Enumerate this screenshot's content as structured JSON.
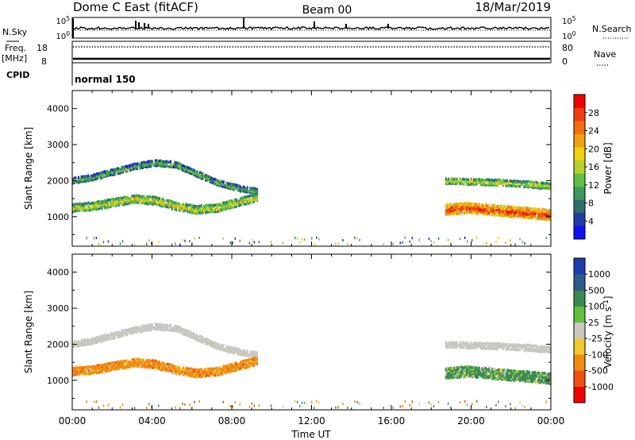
{
  "header": {
    "title": "Dome C East (fitACF)",
    "beam": "Beam 00",
    "date": "18/Mar/2019"
  },
  "params": {
    "nsky_label": "N.Sky",
    "nsky_ticks": [
      "10^5",
      "10^0"
    ],
    "nsearch_label": "N.Search",
    "nsearch_ticks": [
      "10^5",
      "10^0"
    ],
    "freq_label": "Freq.",
    "freq_unit": "[MHz]",
    "freq_ticks": [
      "18",
      "8"
    ],
    "nave_label": "Nave",
    "nave_ticks": [
      "80",
      "0"
    ],
    "cpid_label": "CPID",
    "cpid_value": "normal 150"
  },
  "colors": {
    "power": [
      "#1010f0",
      "#203ca0",
      "#2e6e6e",
      "#3c9a5a",
      "#60c040",
      "#b4d02a",
      "#f0d010",
      "#f0a010",
      "#f07010",
      "#f03c10",
      "#f00000"
    ],
    "velocity": [
      "#f00000",
      "#f05010",
      "#f08c10",
      "#f0c830",
      "#c8c8c0",
      "#60c040",
      "#3c8a50",
      "#2c5c8c",
      "#1c3cb0"
    ],
    "ground_scatter": "#c8c8c0"
  },
  "chart_data": [
    {
      "type": "heatmap",
      "name": "power",
      "xlabel": "",
      "ylabel": "Slant Range [km]",
      "xlim": [
        0,
        24
      ],
      "ylim": [
        180,
        4500
      ],
      "yticks": [
        "1000",
        "2000",
        "3000",
        "4000"
      ],
      "colorbar": {
        "label": "Power [dB]",
        "range": [
          0,
          32
        ],
        "ticks": [
          "4",
          "8",
          "12",
          "16",
          "20",
          "24",
          "28"
        ]
      },
      "series": [
        {
          "x_start": 0.0,
          "x_end": 9.3,
          "range_center": [
            2000,
            2100,
            2250,
            2400,
            2500,
            2450,
            2200,
            1950,
            1800,
            1700
          ],
          "thickness": 170,
          "value": 10
        },
        {
          "x_start": 0.0,
          "x_end": 9.3,
          "range_center": [
            1250,
            1300,
            1400,
            1500,
            1450,
            1300,
            1200,
            1250,
            1400,
            1550
          ],
          "thickness": 230,
          "value": 14
        },
        {
          "x_start": 18.7,
          "x_end": 24.0,
          "range_center": [
            2000,
            1980,
            1960,
            1940,
            1900,
            1850
          ],
          "thickness": 180,
          "value": 14
        },
        {
          "x_start": 18.7,
          "x_end": 24.0,
          "range_center": [
            1200,
            1250,
            1200,
            1150,
            1100,
            1050
          ],
          "thickness": 300,
          "value": 24
        }
      ]
    },
    {
      "type": "heatmap",
      "name": "velocity",
      "xlabel": "Time UT",
      "ylabel": "Slant Range [km]",
      "xlim": [
        0,
        24
      ],
      "ylim": [
        180,
        4500
      ],
      "xticks": [
        "00:00",
        "04:00",
        "08:00",
        "12:00",
        "16:00",
        "20:00",
        "00:00"
      ],
      "yticks": [
        "1000",
        "2000",
        "3000",
        "4000"
      ],
      "colorbar": {
        "label": "Velocity [m s^-1]",
        "ticks": [
          "1000",
          "500",
          "100",
          "25",
          "-25",
          "-100",
          "-500",
          "-1000"
        ]
      },
      "series": [
        {
          "x_start": 0.0,
          "x_end": 9.3,
          "range_center": [
            2000,
            2100,
            2250,
            2400,
            2500,
            2450,
            2200,
            1950,
            1800,
            1700
          ],
          "thickness": 170,
          "value": 0
        },
        {
          "x_start": 0.0,
          "x_end": 9.3,
          "range_center": [
            1250,
            1300,
            1400,
            1500,
            1450,
            1300,
            1200,
            1250,
            1400,
            1550
          ],
          "thickness": 230,
          "value": -300
        },
        {
          "x_start": 18.7,
          "x_end": 24.0,
          "range_center": [
            2000,
            1980,
            1960,
            1940,
            1900,
            1850
          ],
          "thickness": 180,
          "value": 0
        },
        {
          "x_start": 18.7,
          "x_end": 24.0,
          "range_center": [
            1200,
            1250,
            1200,
            1150,
            1100,
            1050
          ],
          "thickness": 300,
          "value": 200
        }
      ]
    }
  ]
}
